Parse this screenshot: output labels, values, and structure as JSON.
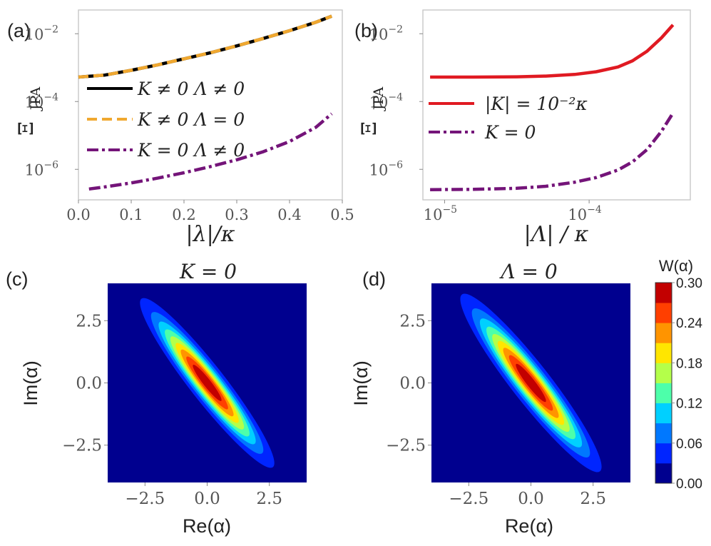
{
  "colors": {
    "black": "#000000",
    "orange": "#f0a830",
    "purple": "#741479",
    "red": "#e01a22",
    "background_field": "#00008f"
  },
  "chart_data": [
    {
      "id": "a",
      "type": "line",
      "panel_label": "(a)",
      "xlabel": "|λ|/κ",
      "ylabel": "Ξ",
      "ylabel_sub": "JPA",
      "xscale": "linear",
      "yscale": "log",
      "xlim": [
        0.0,
        0.5
      ],
      "ylim_exp": [
        -6.9,
        -1.3
      ],
      "xticks": [
        "0.0",
        "0.1",
        "0.2",
        "0.3",
        "0.4",
        "0.5"
      ],
      "xtick_values": [
        0.0,
        0.1,
        0.2,
        0.3,
        0.4,
        0.5
      ],
      "yticks": [
        {
          "base": "10",
          "exp": "−2",
          "value_exp": -2
        },
        {
          "base": "10",
          "exp": "−4",
          "value_exp": -4
        },
        {
          "base": "10",
          "exp": "−6",
          "value_exp": -6
        }
      ],
      "legend_position": "lower-left",
      "series": [
        {
          "name": "K ≠ 0 Λ ≠ 0",
          "color": "#000000",
          "style": "solid",
          "x": [
            0.0,
            0.05,
            0.1,
            0.15,
            0.2,
            0.25,
            0.3,
            0.35,
            0.4,
            0.45,
            0.48
          ],
          "log10_y": [
            -3.28,
            -3.22,
            -3.08,
            -2.92,
            -2.74,
            -2.56,
            -2.36,
            -2.14,
            -1.91,
            -1.66,
            -1.48
          ]
        },
        {
          "name": "K ≠ 0 Λ = 0",
          "color": "#f0a830",
          "style": "dashed",
          "x": [
            0.0,
            0.05,
            0.1,
            0.15,
            0.2,
            0.25,
            0.3,
            0.35,
            0.4,
            0.45,
            0.48
          ],
          "log10_y": [
            -3.28,
            -3.22,
            -3.08,
            -2.92,
            -2.74,
            -2.56,
            -2.36,
            -2.14,
            -1.91,
            -1.66,
            -1.48
          ]
        },
        {
          "name": "K = 0 Λ ≠ 0",
          "color": "#741479",
          "style": "dashdot",
          "x": [
            0.02,
            0.05,
            0.1,
            0.15,
            0.2,
            0.25,
            0.3,
            0.35,
            0.4,
            0.45,
            0.48
          ],
          "log10_y": [
            -6.58,
            -6.52,
            -6.4,
            -6.26,
            -6.1,
            -5.92,
            -5.72,
            -5.48,
            -5.18,
            -4.76,
            -4.36
          ]
        }
      ]
    },
    {
      "id": "b",
      "type": "line",
      "panel_label": "(b)",
      "xlabel": "|Λ| / κ",
      "ylabel": "Ξ",
      "ylabel_sub": "JPA",
      "xscale": "log",
      "yscale": "log",
      "xlim_exp": [
        -5.15,
        -3.3
      ],
      "ylim_exp": [
        -6.9,
        -1.3
      ],
      "xticks": [
        {
          "base": "10",
          "exp": "−5",
          "value_exp": -5
        },
        {
          "base": "10",
          "exp": "−4",
          "value_exp": -4
        }
      ],
      "yticks": [
        {
          "base": "10",
          "exp": "−2",
          "value_exp": -2
        },
        {
          "base": "10",
          "exp": "−4",
          "value_exp": -4
        },
        {
          "base": "10",
          "exp": "−6",
          "value_exp": -6
        }
      ],
      "legend_position": "center-left",
      "series": [
        {
          "name": "|K| = 10⁻²κ",
          "color": "#e01a22",
          "style": "solid",
          "log10_x": [
            -5.1,
            -4.8,
            -4.5,
            -4.3,
            -4.1,
            -3.95,
            -3.8,
            -3.7,
            -3.6,
            -3.5,
            -3.42
          ],
          "log10_y": [
            -3.28,
            -3.28,
            -3.27,
            -3.25,
            -3.2,
            -3.12,
            -2.98,
            -2.8,
            -2.52,
            -2.12,
            -1.74
          ]
        },
        {
          "name": "K = 0",
          "color": "#741479",
          "style": "dashdot",
          "log10_x": [
            -5.1,
            -4.8,
            -4.5,
            -4.3,
            -4.1,
            -3.95,
            -3.8,
            -3.7,
            -3.6,
            -3.5,
            -3.42
          ],
          "log10_y": [
            -6.6,
            -6.59,
            -6.56,
            -6.5,
            -6.38,
            -6.24,
            -6.02,
            -5.78,
            -5.42,
            -4.88,
            -4.34
          ]
        }
      ]
    },
    {
      "id": "c",
      "type": "heatmap",
      "panel_label": "(c)",
      "title": "K = 0",
      "xlabel": "Re(α)",
      "ylabel": "Im(α)",
      "xlim": [
        -4,
        4
      ],
      "ylim": [
        -4,
        4
      ],
      "xticks": [
        "−2.5",
        "0.0",
        "2.5"
      ],
      "xtick_values": [
        -2.5,
        0.0,
        2.5
      ],
      "yticks": [
        "2.5",
        "0.0",
        "−2.5"
      ],
      "ytick_values": [
        2.5,
        0.0,
        -2.5
      ],
      "distribution": {
        "peak": 0.3,
        "major_sigma": 2.0,
        "minor_sigma": 0.33,
        "angle_deg": -52
      }
    },
    {
      "id": "d",
      "type": "heatmap",
      "panel_label": "(d)",
      "title": "Λ = 0",
      "xlabel": "Re(α)",
      "ylabel": "Im(α)",
      "xlim": [
        -4,
        4
      ],
      "ylim": [
        -4,
        4
      ],
      "xticks": [
        "−2.5",
        "0.0",
        "2.5"
      ],
      "xtick_values": [
        -2.5,
        0.0,
        2.5
      ],
      "yticks": [
        "2.5",
        "0.0",
        "−2.5"
      ],
      "ytick_values": [
        2.5,
        0.0,
        -2.5
      ],
      "distribution": {
        "peak": 0.3,
        "major_sigma": 2.1,
        "minor_sigma": 0.36,
        "angle_deg": -52
      }
    }
  ],
  "colorbar": {
    "label": "W(α)",
    "levels": [
      0.0,
      0.03,
      0.06,
      0.09,
      0.12,
      0.15,
      0.18,
      0.21,
      0.24,
      0.27,
      0.3
    ],
    "ticks": [
      "0.30",
      "0.24",
      "0.18",
      "0.12",
      "0.06",
      "0.00"
    ],
    "tick_values": [
      0.3,
      0.24,
      0.18,
      0.12,
      0.06,
      0.0
    ],
    "colors": [
      "#00008f",
      "#0025ff",
      "#0078ff",
      "#00d0ff",
      "#4dffaa",
      "#b4ff4a",
      "#ffe600",
      "#ff9400",
      "#ff3f00",
      "#c20000"
    ]
  }
}
